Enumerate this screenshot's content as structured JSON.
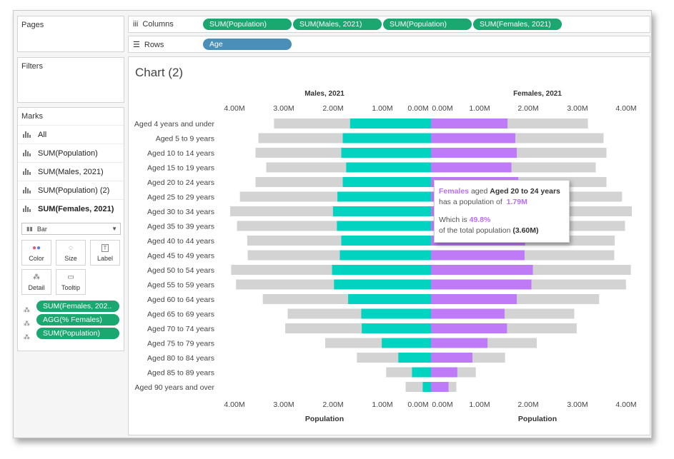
{
  "left_panel": {
    "pages_label": "Pages",
    "filters_label": "Filters",
    "marks_label": "Marks",
    "marks_items": [
      "All",
      "SUM(Population)",
      "SUM(Males, 2021)",
      "SUM(Population) (2)",
      "SUM(Females, 2021)"
    ],
    "mark_type": "Bar",
    "buttons": {
      "color": "Color",
      "size": "Size",
      "label": "Label",
      "detail": "Detail",
      "tooltip": "Tooltip"
    },
    "fields": [
      "SUM(Females, 202..",
      "AGG(% Females)",
      "SUM(Population)"
    ]
  },
  "shelves": {
    "columns_label": "Columns",
    "rows_label": "Rows",
    "columns_pills": [
      "SUM(Population)",
      "SUM(Males, 2021)",
      "SUM(Population)",
      "SUM(Females, 2021)"
    ],
    "rows_pills": [
      "Age"
    ]
  },
  "view": {
    "title": "Chart (2)"
  },
  "tooltip": {
    "gender": "Females",
    "aged_word": "aged",
    "age_group": "Aged 20 to 24 years",
    "has_pop": "has a population of",
    "value": "1.79M",
    "which_is": "Which is",
    "percent": "49.8%",
    "of_total": "of the total population",
    "total": "(3.60M)"
  },
  "colors": {
    "males": "#00d4c0",
    "females": "#bf7bf7",
    "population": "#d3d3d3",
    "pill_green": "#1aa770",
    "pill_blue": "#4a8fb8"
  },
  "chart_data": {
    "type": "bar",
    "left_header": "Males, 2021",
    "right_header": "Females, 2021",
    "xlabel": "Population",
    "xlim": [
      0,
      4000000
    ],
    "left_ticks": [
      "4.00M",
      "3.00M",
      "2.00M",
      "1.00M",
      "0.00M"
    ],
    "right_ticks": [
      "0.00M",
      "1.00M",
      "2.00M",
      "3.00M",
      "4.00M"
    ],
    "categories": [
      "Aged 4 years and under",
      "Aged 5 to 9 years",
      "Aged 10 to 14 years",
      "Aged 15 to 19 years",
      "Aged 20 to 24 years",
      "Aged 25 to 29 years",
      "Aged 30 to 34 years",
      "Aged 35 to 39 years",
      "Aged 40 to 44 years",
      "Aged 45 to 49 years",
      "Aged 50 to 54 years",
      "Aged 55 to 59 years",
      "Aged 60 to 64 years",
      "Aged 65 to 69 years",
      "Aged 70 to 74 years",
      "Aged 75 to 79 years",
      "Aged 80 to 84 years",
      "Aged 85 to 89 years",
      "Aged 90 years and over"
    ],
    "series": [
      {
        "name": "SUM(Population)",
        "values": [
          3.22,
          3.54,
          3.6,
          3.38,
          3.6,
          3.92,
          4.12,
          3.98,
          3.77,
          3.76,
          4.1,
          4.0,
          3.45,
          2.94,
          2.99,
          2.17,
          1.52,
          0.92,
          0.52
        ]
      },
      {
        "name": "SUM(Males, 2021)",
        "values": [
          1.66,
          1.81,
          1.84,
          1.74,
          1.81,
          1.92,
          2.01,
          1.93,
          1.84,
          1.87,
          2.03,
          1.99,
          1.7,
          1.43,
          1.42,
          1.01,
          0.67,
          0.39,
          0.17
        ]
      },
      {
        "name": "SUM(Population) (2)",
        "values": [
          3.22,
          3.54,
          3.6,
          3.38,
          3.6,
          3.92,
          4.12,
          3.98,
          3.77,
          3.76,
          4.1,
          4.0,
          3.45,
          2.94,
          2.99,
          2.17,
          1.52,
          0.92,
          0.52
        ]
      },
      {
        "name": "SUM(Females, 2021)",
        "values": [
          1.57,
          1.73,
          1.76,
          1.65,
          1.79,
          1.99,
          2.1,
          2.03,
          1.93,
          1.92,
          2.09,
          2.06,
          1.76,
          1.51,
          1.56,
          1.16,
          0.85,
          0.54,
          0.36
        ]
      }
    ]
  }
}
